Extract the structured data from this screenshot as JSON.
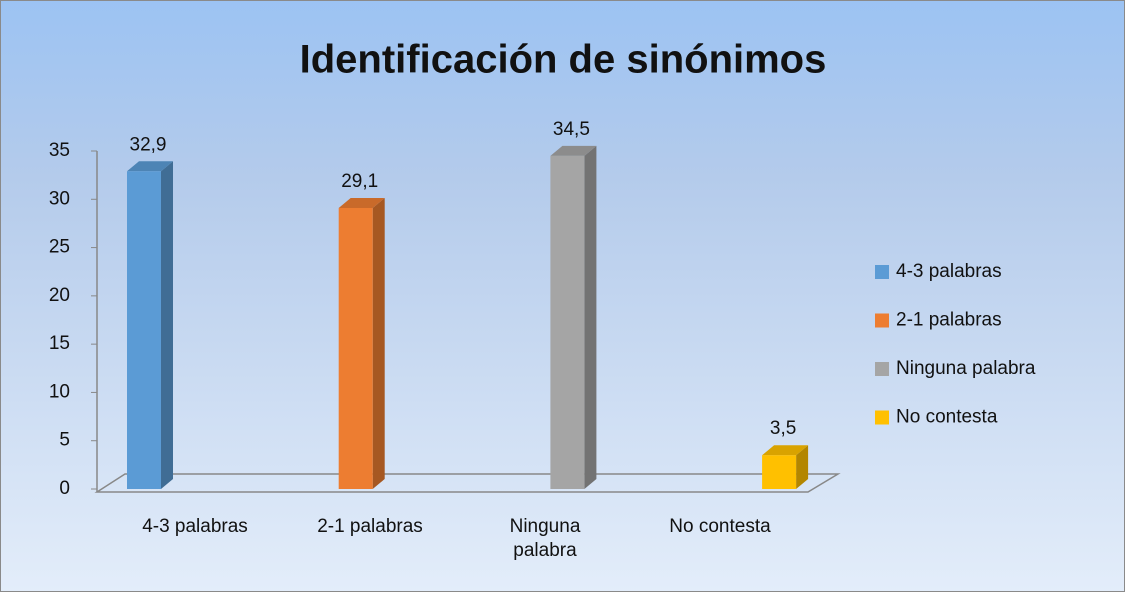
{
  "chart_data": {
    "type": "bar",
    "title": "Identificación de sinónimos",
    "categories": [
      "4-3 palabras",
      "2-1 palabras",
      "Ninguna palabra",
      "No contesta"
    ],
    "values": [
      32.9,
      29.1,
      34.5,
      3.5
    ],
    "value_labels": [
      "32,9",
      "29,1",
      "34,5",
      "3,5"
    ],
    "colors": [
      "#5b9bd5",
      "#ed7d31",
      "#a5a5a5",
      "#ffc000"
    ],
    "ylim": [
      0,
      35
    ],
    "yticks": [
      0,
      5,
      10,
      15,
      20,
      25,
      30,
      35
    ],
    "legend": "right"
  }
}
